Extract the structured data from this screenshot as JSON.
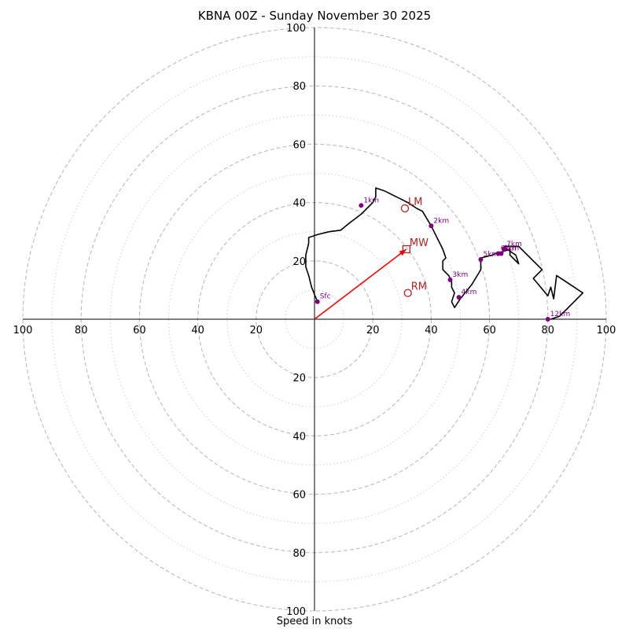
{
  "chart_data": {
    "type": "hodograph",
    "title": "KBNA 00Z - Sunday November 30 2025",
    "xlabel": "Speed in knots",
    "ylabel": "",
    "xlim": [
      -100,
      100
    ],
    "ylim": [
      -100,
      100
    ],
    "major_rings": [
      20,
      40,
      60,
      80,
      100
    ],
    "minor_rings": [
      10,
      30,
      50,
      70,
      90
    ],
    "x_ticks": [
      {
        "value": -100,
        "label": "100"
      },
      {
        "value": -80,
        "label": "80"
      },
      {
        "value": -60,
        "label": "60"
      },
      {
        "value": -40,
        "label": "40"
      },
      {
        "value": -20,
        "label": "20"
      },
      {
        "value": 20,
        "label": "20"
      },
      {
        "value": 40,
        "label": "40"
      },
      {
        "value": 60,
        "label": "60"
      },
      {
        "value": 80,
        "label": "80"
      },
      {
        "value": 100,
        "label": "100"
      }
    ],
    "y_ticks": [
      {
        "value": 100,
        "label": "100"
      },
      {
        "value": 80,
        "label": "80"
      },
      {
        "value": 60,
        "label": "60"
      },
      {
        "value": 40,
        "label": "40"
      },
      {
        "value": 20,
        "label": "20"
      },
      {
        "value": -20,
        "label": "20"
      },
      {
        "value": -40,
        "label": "40"
      },
      {
        "value": -60,
        "label": "60"
      },
      {
        "value": -80,
        "label": "80"
      },
      {
        "value": -100,
        "label": "100"
      }
    ],
    "hodograph_trace": [
      [
        1,
        6
      ],
      [
        -1,
        11
      ],
      [
        -2,
        15
      ],
      [
        -3,
        18
      ],
      [
        -3,
        22
      ],
      [
        -2,
        26
      ],
      [
        -2,
        28
      ],
      [
        1,
        29
      ],
      [
        5,
        30
      ],
      [
        9,
        30.5
      ],
      [
        12,
        33
      ],
      [
        16,
        36
      ],
      [
        18,
        38
      ],
      [
        20,
        40
      ],
      [
        21,
        42
      ],
      [
        21,
        45
      ],
      [
        24,
        44
      ],
      [
        28,
        42
      ],
      [
        32,
        40
      ],
      [
        35,
        38
      ],
      [
        37,
        37
      ],
      [
        40,
        32
      ],
      [
        42,
        28
      ],
      [
        44,
        24
      ],
      [
        45,
        21
      ],
      [
        44,
        20
      ],
      [
        44,
        17
      ],
      [
        46,
        15
      ],
      [
        47,
        13
      ],
      [
        47,
        11
      ],
      [
        48,
        9
      ],
      [
        47,
        6
      ],
      [
        48,
        4
      ],
      [
        50,
        7
      ],
      [
        54,
        12
      ],
      [
        57,
        17
      ],
      [
        57,
        21
      ],
      [
        61,
        22
      ],
      [
        63,
        23
      ],
      [
        64,
        23
      ],
      [
        67,
        24
      ],
      [
        67,
        22
      ],
      [
        70,
        19
      ],
      [
        69,
        22
      ],
      [
        66,
        24
      ],
      [
        65,
        25
      ],
      [
        67,
        25
      ],
      [
        70,
        25
      ],
      [
        73,
        22
      ],
      [
        77,
        18
      ],
      [
        78,
        17
      ],
      [
        75,
        14
      ],
      [
        80,
        8
      ],
      [
        81,
        11
      ],
      [
        82,
        7
      ],
      [
        83,
        15
      ],
      [
        86,
        13
      ],
      [
        89,
        11
      ],
      [
        92,
        9
      ],
      [
        87,
        4
      ],
      [
        84,
        1
      ],
      [
        81,
        0
      ]
    ],
    "height_markers": [
      {
        "label": "Sfc",
        "x": 1,
        "y": 6
      },
      {
        "label": "1km",
        "x": 16,
        "y": 39
      },
      {
        "label": "2km",
        "x": 40,
        "y": 32
      },
      {
        "label": "3km",
        "x": 46.5,
        "y": 13.5
      },
      {
        "label": "4km",
        "x": 49.5,
        "y": 7.5
      },
      {
        "label": "5km",
        "x": 57,
        "y": 20.5
      },
      {
        "label": "6km",
        "x": 63,
        "y": 22.5
      },
      {
        "label": "7km",
        "x": 65,
        "y": 24
      },
      {
        "label": "8km",
        "x": 64,
        "y": 22.5
      },
      {
        "label": "12km",
        "x": 80,
        "y": 0
      }
    ],
    "storm_motion": [
      {
        "label": "LM",
        "x": 31,
        "y": 38,
        "marker": "circle"
      },
      {
        "label": "MW",
        "x": 31.5,
        "y": 24,
        "marker": "square"
      },
      {
        "label": "RM",
        "x": 32,
        "y": 9,
        "marker": "circle"
      }
    ],
    "mean_wind_vector": {
      "from": [
        0,
        0
      ],
      "to": [
        31.5,
        24
      ]
    },
    "colors": {
      "trace": "#000000",
      "marker": "#800080",
      "storm": "#b22222",
      "vector": "#ff0000",
      "major_ring": "#bbbbbb",
      "minor_ring": "#cfcfcf",
      "axis": "#000000"
    }
  }
}
